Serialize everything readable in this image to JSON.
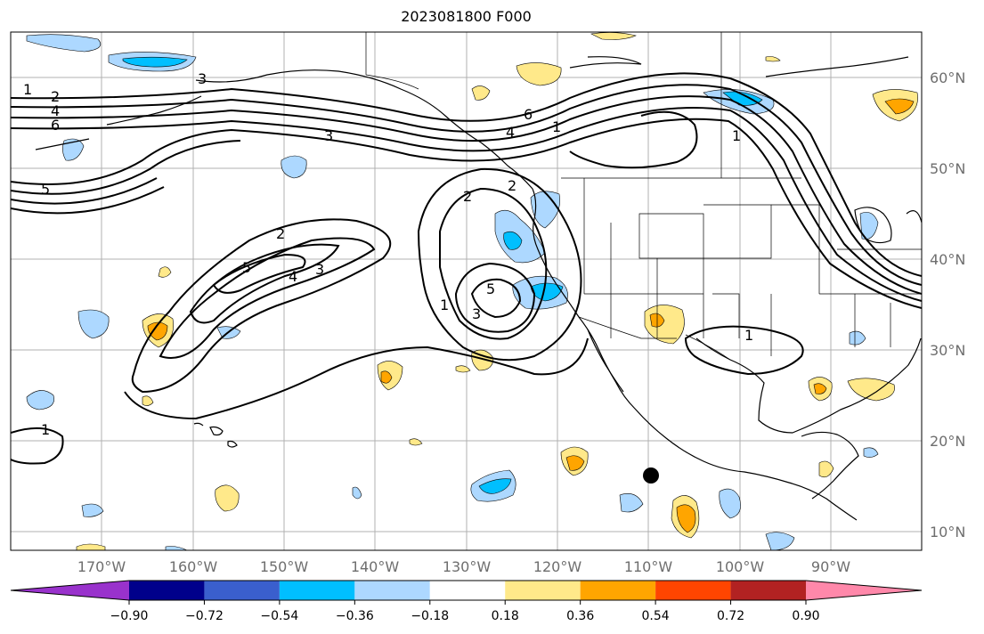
{
  "title": "2023081800 F000",
  "lat_labels": [
    "60°N",
    "50°N",
    "40°N",
    "30°N",
    "20°N",
    "10°N"
  ],
  "lon_labels": [
    "170°W",
    "160°W",
    "150°W",
    "140°W",
    "130°W",
    "120°W",
    "110°W",
    "100°W",
    "90°W"
  ],
  "colorbar": {
    "ticks": [
      "−0.90",
      "−0.72",
      "−0.54",
      "−0.36",
      "−0.18",
      "0.18",
      "0.36",
      "0.54",
      "0.72",
      "0.90"
    ],
    "colors": [
      "#9932cc",
      "#00008b",
      "#3a5fcd",
      "#00bfff",
      "#add8ff",
      "#ffffff",
      "#ffe98a",
      "#ffa500",
      "#ff4500",
      "#b22222",
      "#ff88aa"
    ]
  },
  "contour_labels": [
    "1",
    "2",
    "4",
    "6",
    "3",
    "5",
    "2",
    "5",
    "3",
    "4",
    "2",
    "3",
    "5",
    "1",
    "3",
    "1",
    "2",
    "4",
    "6",
    "1",
    "1",
    "1"
  ],
  "storm_marker": "storm-center"
}
